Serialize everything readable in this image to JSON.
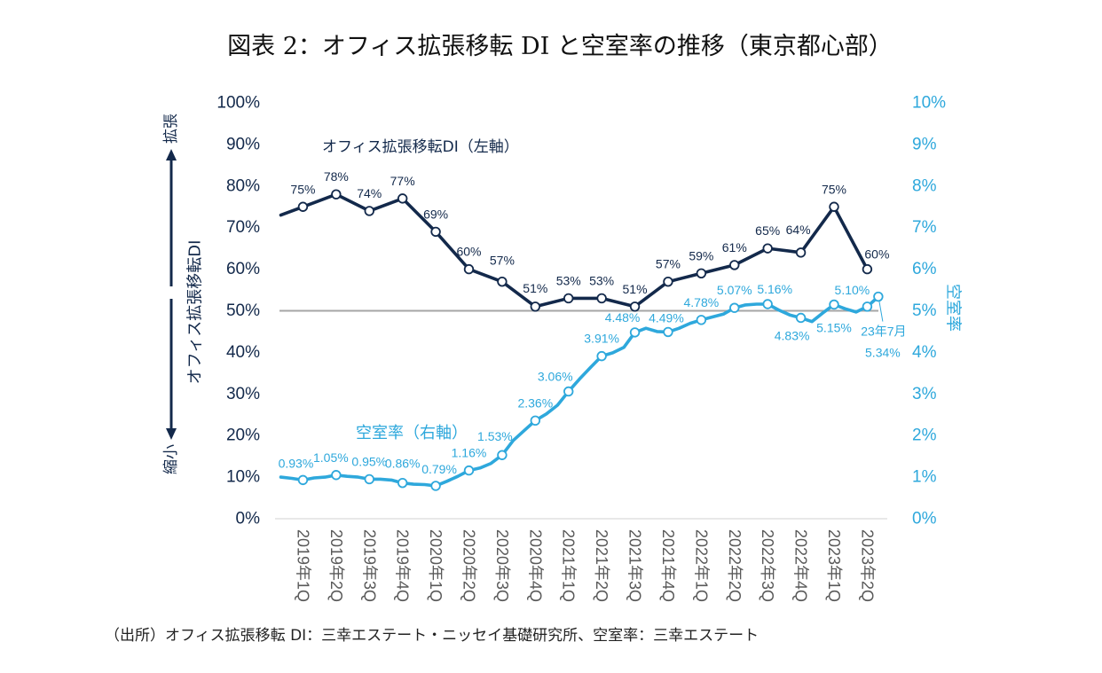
{
  "figure": {
    "title": "図表 2：オフィス拡張移転 DI と空室率の推移（東京都心部）",
    "source": "（出所）オフィス拡張移転 DI：三幸エステート・ニッセイ基礎研究所、空室率：三幸エステート"
  },
  "colors": {
    "di": "#13294b",
    "vacancy": "#2ea8dc",
    "x_tick_text": "#595959",
    "reference_line": "#a6a6a6",
    "baseline": "#d9d9d9"
  },
  "chart_data": {
    "type": "line",
    "title": "図表 2：オフィス拡張移転 DI と空室率の推移（東京都心部）",
    "x_note": "monthly index; category labels placed at quarter-end months",
    "categories": [
      "2019年1Q",
      "2019年2Q",
      "2019年3Q",
      "2019年4Q",
      "2020年1Q",
      "2020年2Q",
      "2020年3Q",
      "2020年4Q",
      "2021年1Q",
      "2021年2Q",
      "2021年3Q",
      "2021年4Q",
      "2022年1Q",
      "2022年2Q",
      "2022年3Q",
      "2022年4Q",
      "2023年1Q",
      "2023年2Q"
    ],
    "category_x": [
      2,
      5,
      8,
      11,
      14,
      17,
      20,
      23,
      26,
      29,
      32,
      35,
      38,
      41,
      44,
      47,
      50,
      53
    ],
    "x_range": [
      0,
      54
    ],
    "axes": {
      "left": {
        "title": "オフィス拡張移転DI",
        "arrow_up_label": "拡張",
        "arrow_down_label": "縮小",
        "min": 0,
        "max": 100,
        "tick_values": [
          0,
          10,
          20,
          30,
          40,
          50,
          60,
          70,
          80,
          90,
          100
        ],
        "tick_labels": [
          "0%",
          "10%",
          "20%",
          "30%",
          "40%",
          "50%",
          "60%",
          "70%",
          "80%",
          "90%",
          "100%"
        ]
      },
      "right": {
        "title": "空室率",
        "min": 0,
        "max": 10,
        "tick_values": [
          0,
          1,
          2,
          3,
          4,
          5,
          6,
          7,
          8,
          9,
          10
        ],
        "tick_labels": [
          "0%",
          "1%",
          "2%",
          "3%",
          "4%",
          "5%",
          "6%",
          "7%",
          "8%",
          "9%",
          "10%"
        ]
      }
    },
    "reference_line": {
      "axis": "left",
      "value": 50
    },
    "grid": false,
    "series": [
      {
        "name": "オフィス拡張移転DI（左軸）",
        "axis": "left",
        "points": [
          {
            "x": 0,
            "y": 73
          },
          {
            "x": 2,
            "y": 75,
            "label": "75%"
          },
          {
            "x": 5,
            "y": 78,
            "label": "78%"
          },
          {
            "x": 8,
            "y": 74,
            "label": "74%"
          },
          {
            "x": 11,
            "y": 77,
            "label": "77%"
          },
          {
            "x": 14,
            "y": 69,
            "label": "69%"
          },
          {
            "x": 17,
            "y": 60,
            "label": "60%"
          },
          {
            "x": 20,
            "y": 57,
            "label": "57%"
          },
          {
            "x": 23,
            "y": 51,
            "label": "51%"
          },
          {
            "x": 26,
            "y": 53,
            "label": "53%"
          },
          {
            "x": 29,
            "y": 53,
            "label": "53%"
          },
          {
            "x": 32,
            "y": 51,
            "label": "51%"
          },
          {
            "x": 35,
            "y": 57,
            "label": "57%"
          },
          {
            "x": 38,
            "y": 59,
            "label": "59%"
          },
          {
            "x": 41,
            "y": 61,
            "label": "61%"
          },
          {
            "x": 44,
            "y": 65,
            "label": "65%"
          },
          {
            "x": 47,
            "y": 64,
            "label": "64%"
          },
          {
            "x": 50,
            "y": 75,
            "label": "75%"
          },
          {
            "x": 53,
            "y": 60,
            "label": "60%"
          }
        ]
      },
      {
        "name": "空室率（右軸）",
        "axis": "right",
        "points": [
          {
            "x": 0,
            "y": 1.0
          },
          {
            "x": 1,
            "y": 0.97
          },
          {
            "x": 2,
            "y": 0.93,
            "label": "0.93%"
          },
          {
            "x": 3,
            "y": 0.98
          },
          {
            "x": 4,
            "y": 1.0
          },
          {
            "x": 5,
            "y": 1.05,
            "label": "1.05%"
          },
          {
            "x": 6,
            "y": 1.02
          },
          {
            "x": 7,
            "y": 1.0
          },
          {
            "x": 8,
            "y": 0.95,
            "label": "0.95%"
          },
          {
            "x": 9,
            "y": 0.95
          },
          {
            "x": 10,
            "y": 0.93
          },
          {
            "x": 11,
            "y": 0.86,
            "label": "0.86%"
          },
          {
            "x": 12,
            "y": 0.83
          },
          {
            "x": 13,
            "y": 0.82
          },
          {
            "x": 14,
            "y": 0.79,
            "label": "0.79%"
          },
          {
            "x": 15,
            "y": 0.9
          },
          {
            "x": 16,
            "y": 1.02
          },
          {
            "x": 17,
            "y": 1.16,
            "label": "1.16%"
          },
          {
            "x": 18,
            "y": 1.22
          },
          {
            "x": 19,
            "y": 1.33
          },
          {
            "x": 20,
            "y": 1.53,
            "label": "1.53%"
          },
          {
            "x": 21,
            "y": 1.88
          },
          {
            "x": 22,
            "y": 2.12
          },
          {
            "x": 23,
            "y": 2.36,
            "label": "2.36%"
          },
          {
            "x": 24,
            "y": 2.52
          },
          {
            "x": 25,
            "y": 2.73
          },
          {
            "x": 26,
            "y": 3.06,
            "label": "3.06%"
          },
          {
            "x": 27,
            "y": 3.36
          },
          {
            "x": 28,
            "y": 3.64
          },
          {
            "x": 29,
            "y": 3.91,
            "label": "3.91%"
          },
          {
            "x": 30,
            "y": 3.99
          },
          {
            "x": 31,
            "y": 4.12
          },
          {
            "x": 32,
            "y": 4.48,
            "label": "4.48%"
          },
          {
            "x": 33,
            "y": 4.58
          },
          {
            "x": 34,
            "y": 4.5
          },
          {
            "x": 35,
            "y": 4.49,
            "label": "4.49%"
          },
          {
            "x": 36,
            "y": 4.58
          },
          {
            "x": 37,
            "y": 4.7
          },
          {
            "x": 38,
            "y": 4.78,
            "label": "4.78%"
          },
          {
            "x": 39,
            "y": 4.85
          },
          {
            "x": 40,
            "y": 4.92
          },
          {
            "x": 41,
            "y": 5.07,
            "label": "5.07%"
          },
          {
            "x": 42,
            "y": 5.14
          },
          {
            "x": 43,
            "y": 5.16
          },
          {
            "x": 44,
            "y": 5.16,
            "label": "5.16%"
          },
          {
            "x": 45,
            "y": 5.02
          },
          {
            "x": 46,
            "y": 4.9
          },
          {
            "x": 47,
            "y": 4.83,
            "label": "4.83%"
          },
          {
            "x": 48,
            "y": 4.74
          },
          {
            "x": 49,
            "y": 4.95
          },
          {
            "x": 50,
            "y": 5.15,
            "label": "5.15%"
          },
          {
            "x": 51,
            "y": 5.05
          },
          {
            "x": 52,
            "y": 4.97
          },
          {
            "x": 53,
            "y": 5.1,
            "label": "5.10%"
          },
          {
            "x": 54,
            "y": 5.34,
            "label": "5.34%",
            "annotation": "23年7月"
          }
        ]
      }
    ]
  }
}
